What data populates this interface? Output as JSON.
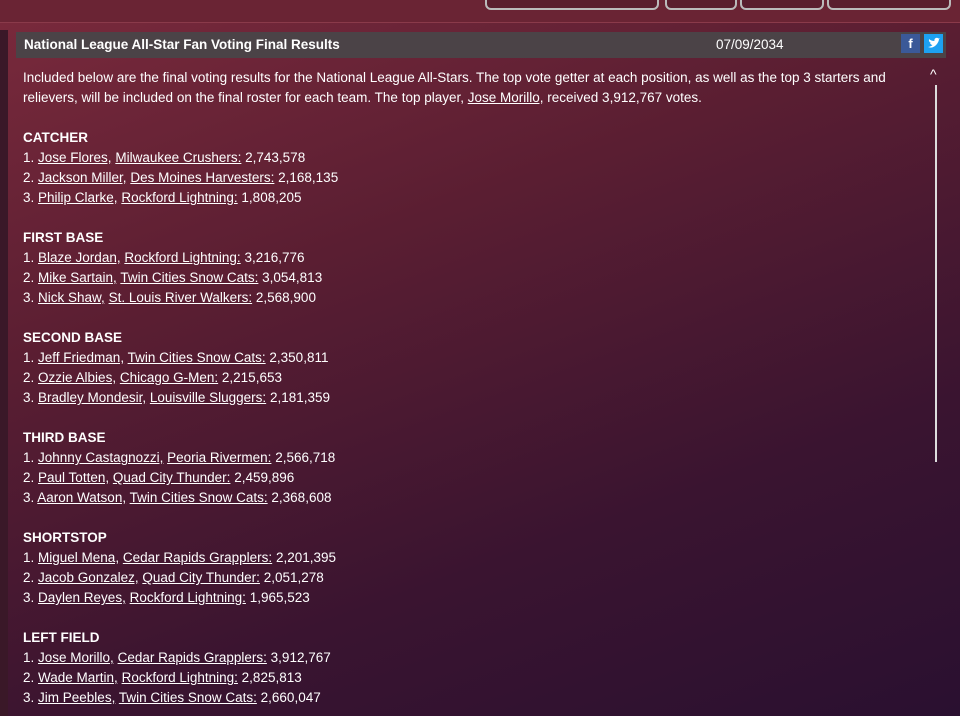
{
  "header": {
    "title": "National League All-Star Fan Voting Final Results",
    "date": "07/09/2034",
    "facebook": "f"
  },
  "intro": {
    "text": "Included below are the final voting results for the National League All-Stars.  The top vote getter at each position, as well as the top 3 starters and relievers, will be included on the final roster for each team. The top player, ",
    "player": "Jose Morillo,",
    "after": " received 3,912,767 votes."
  },
  "sections": [
    {
      "heading": "CATCHER",
      "entries": [
        {
          "rank": "1.",
          "player": "Jose Flores,",
          "team": "Milwaukee Crushers:",
          "votes": "2,743,578"
        },
        {
          "rank": "2.",
          "player": "Jackson Miller,",
          "team": "Des Moines Harvesters:",
          "votes": "2,168,135"
        },
        {
          "rank": "3.",
          "player": "Philip Clarke,",
          "team": "Rockford Lightning:",
          "votes": "1,808,205"
        }
      ]
    },
    {
      "heading": "FIRST BASE",
      "entries": [
        {
          "rank": "1.",
          "player": "Blaze Jordan,",
          "team": "Rockford Lightning:",
          "votes": "3,216,776"
        },
        {
          "rank": "2.",
          "player": "Mike Sartain,",
          "team": "Twin Cities Snow Cats:",
          "votes": "3,054,813"
        },
        {
          "rank": "3.",
          "player": "Nick Shaw,",
          "team": "St. Louis River Walkers:",
          "votes": "2,568,900"
        }
      ]
    },
    {
      "heading": "SECOND BASE",
      "entries": [
        {
          "rank": "1.",
          "player": "Jeff Friedman,",
          "team": "Twin Cities Snow Cats:",
          "votes": "2,350,811"
        },
        {
          "rank": "2.",
          "player": "Ozzie Albies,",
          "team": "Chicago G-Men:",
          "votes": "2,215,653"
        },
        {
          "rank": "3.",
          "player": "Bradley Mondesir,",
          "team": "Louisville Sluggers:",
          "votes": "2,181,359"
        }
      ]
    },
    {
      "heading": "THIRD BASE",
      "entries": [
        {
          "rank": "1.",
          "player": "Johnny Castagnozzi,",
          "team": "Peoria Rivermen:",
          "votes": "2,566,718"
        },
        {
          "rank": "2.",
          "player": "Paul Totten,",
          "team": "Quad City Thunder:",
          "votes": "2,459,896"
        },
        {
          "rank": "3.",
          "player": "Aaron Watson,",
          "team": "Twin Cities Snow Cats:",
          "votes": "2,368,608"
        }
      ]
    },
    {
      "heading": "SHORTSTOP",
      "entries": [
        {
          "rank": "1.",
          "player": "Miguel Mena,",
          "team": "Cedar Rapids Grapplers:",
          "votes": "2,201,395"
        },
        {
          "rank": "2.",
          "player": "Jacob Gonzalez,",
          "team": "Quad City Thunder:",
          "votes": "2,051,278"
        },
        {
          "rank": "3.",
          "player": "Daylen Reyes,",
          "team": "Rockford Lightning:",
          "votes": "1,965,523"
        }
      ]
    },
    {
      "heading": "LEFT FIELD",
      "entries": [
        {
          "rank": "1.",
          "player": "Jose Morillo,",
          "team": "Cedar Rapids Grapplers:",
          "votes": "3,912,767"
        },
        {
          "rank": "2.",
          "player": "Wade Martin,",
          "team": "Rockford Lightning:",
          "votes": "2,825,813"
        },
        {
          "rank": "3.",
          "player": "Jim Peebles,",
          "team": "Twin Cities Snow Cats:",
          "votes": "2,660,047"
        }
      ]
    }
  ]
}
